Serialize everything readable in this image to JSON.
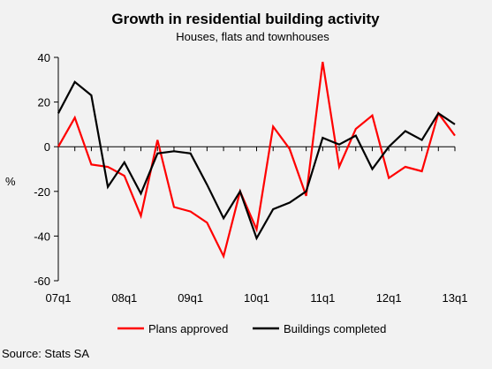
{
  "chart_data": {
    "type": "line",
    "title": "Growth in residential building activity",
    "subtitle": "Houses, flats and townhouses",
    "ylabel": "%",
    "xlabel": "",
    "ylim": [
      -60,
      40
    ],
    "yticks": [
      40,
      20,
      0,
      -20,
      -40,
      -60
    ],
    "x": [
      "07q1",
      "07q2",
      "07q3",
      "07q4",
      "08q1",
      "08q2",
      "08q3",
      "08q4",
      "09q1",
      "09q2",
      "09q3",
      "09q4",
      "10q1",
      "10q2",
      "10q3",
      "10q4",
      "11q1",
      "11q2",
      "11q3",
      "11q4",
      "12q1",
      "12q2",
      "12q3",
      "12q4",
      "13q1"
    ],
    "xtick_labels": [
      "07q1",
      "08q1",
      "09q1",
      "10q1",
      "11q1",
      "12q1",
      "13q1"
    ],
    "legend_position": "bottom",
    "grid": false,
    "series": [
      {
        "name": "Plans approved",
        "color": "#ff0000",
        "values": [
          0,
          13,
          -8,
          -9,
          -13,
          -31,
          3,
          -27,
          -29,
          -34,
          -49,
          -20,
          -37,
          9,
          -1,
          -22,
          38,
          -9,
          8,
          14,
          -14,
          -9,
          -11,
          15,
          5
        ]
      },
      {
        "name": "Buildings completed",
        "color": "#000000",
        "values": [
          15,
          29,
          23,
          -18,
          -7,
          -21,
          -3,
          -2,
          -3,
          -17,
          -32,
          -20,
          -41,
          -28,
          -25,
          -20,
          4,
          1,
          5,
          -10,
          0,
          7,
          3,
          15,
          10
        ]
      }
    ]
  },
  "source": "Source: Stats SA"
}
